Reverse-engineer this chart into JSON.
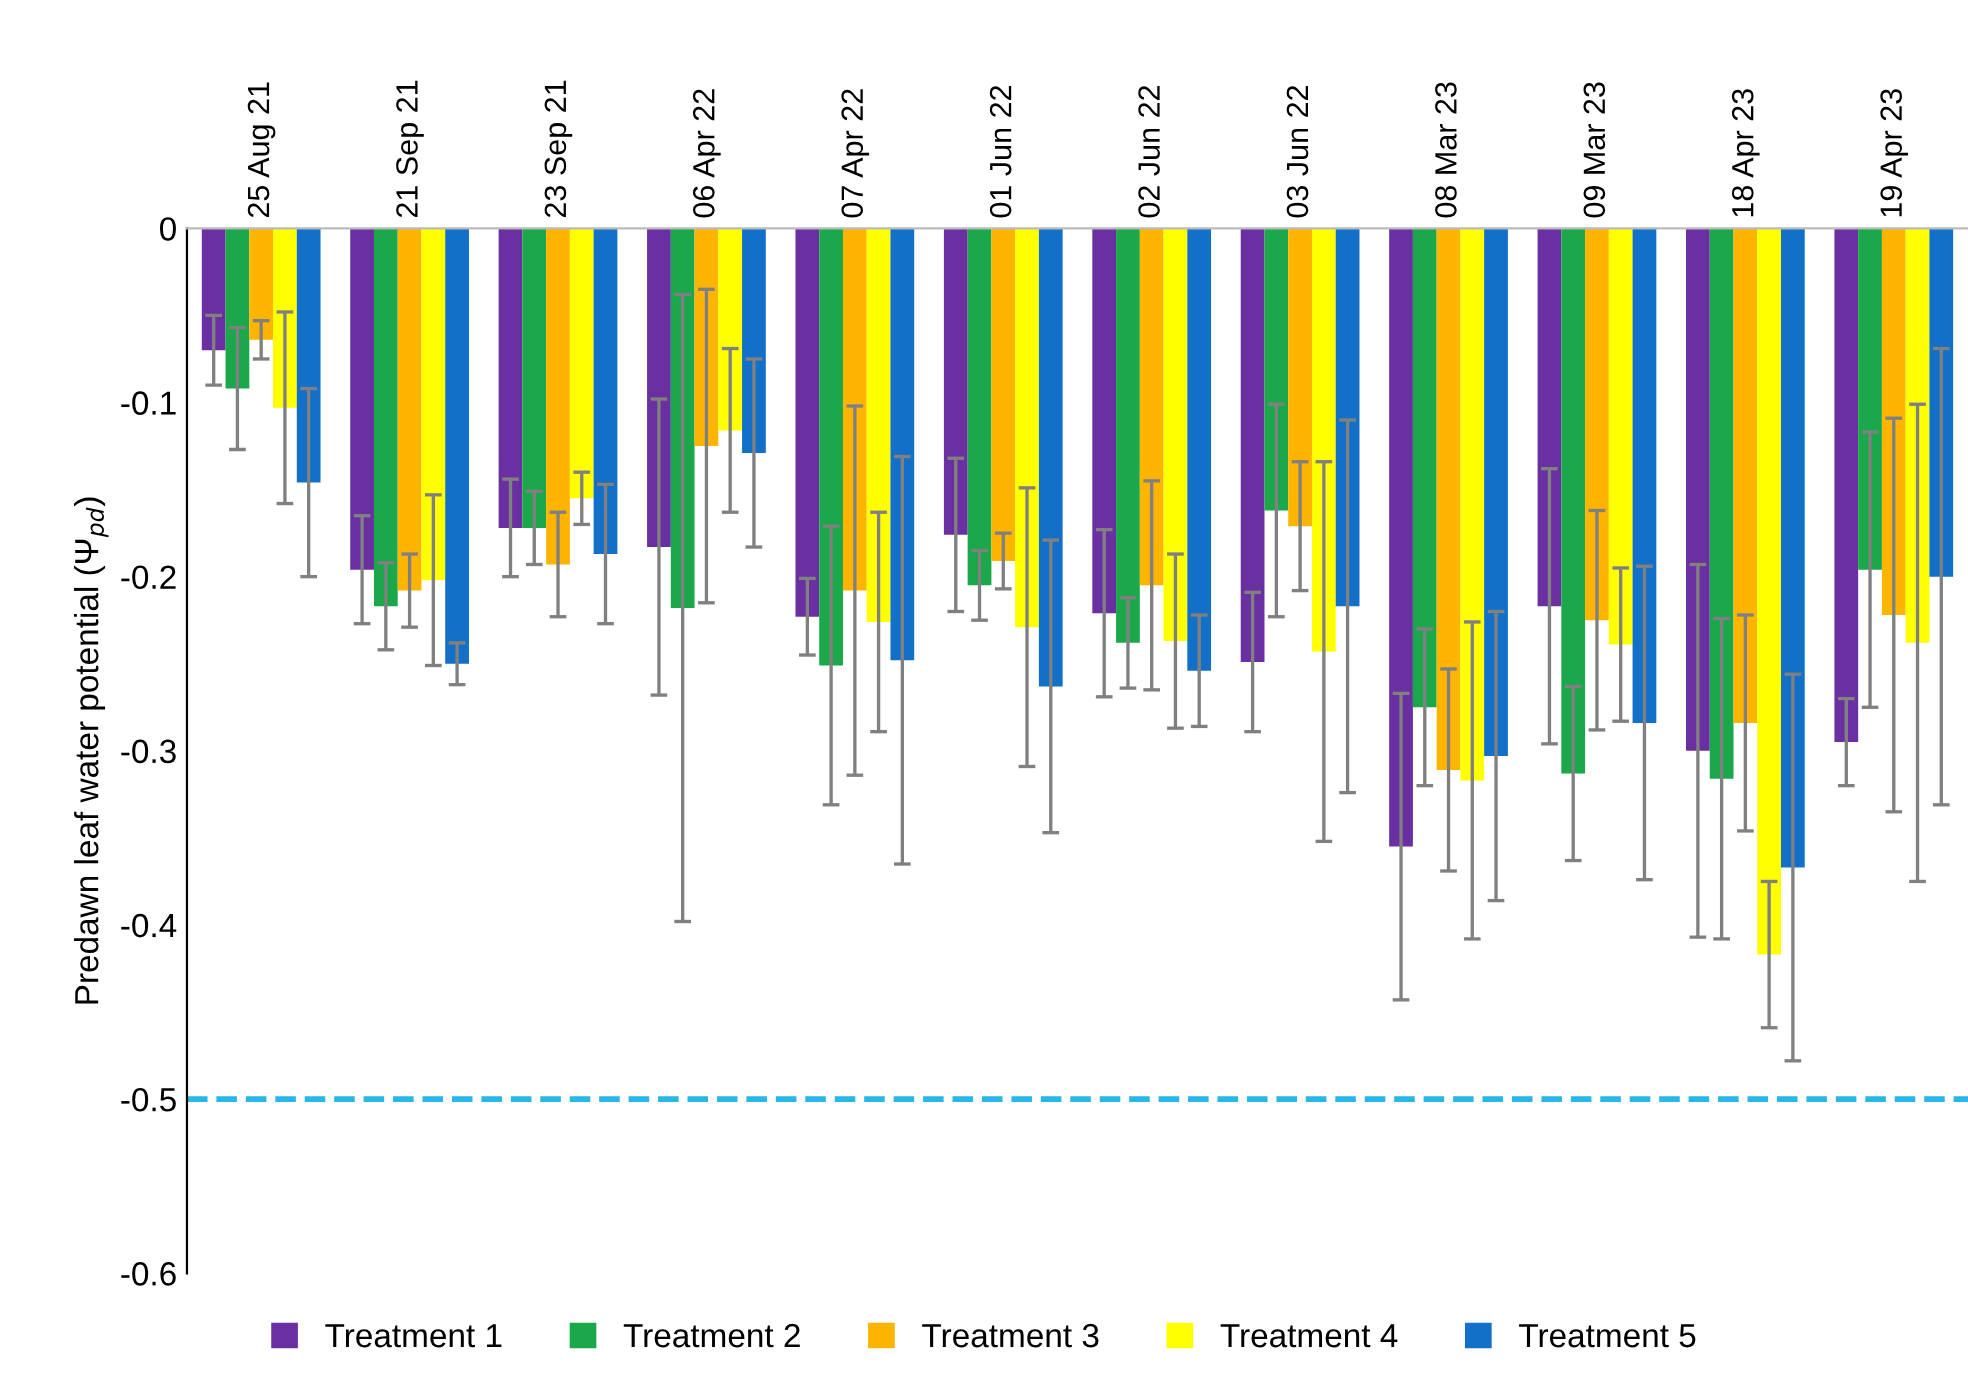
{
  "chart_data": {
    "type": "bar",
    "ylabel": "Predawn leaf water potential (Ψ$_{pd}$)",
    "categories": [
      "25 Aug 21",
      "21 Sep 21",
      "23 Sep 21",
      "06 Apr 22",
      "07 Apr 22",
      "01 Jun 22",
      "02 Jun 22",
      "03 Jun 22",
      "08 Mar 23",
      "09 Mar 23",
      "18 Apr 23",
      "19 Apr 23"
    ],
    "series": [
      {
        "name": "Treatment 1",
        "color": "#6a2fa0",
        "values": [
          -0.07,
          -0.196,
          -0.172,
          -0.183,
          -0.223,
          -0.176,
          -0.221,
          -0.249,
          -0.355,
          -0.217,
          -0.3,
          -0.295
        ],
        "errors": [
          0.02,
          0.031,
          0.028,
          0.085,
          0.022,
          0.044,
          0.048,
          0.04,
          0.088,
          0.079,
          0.107,
          0.025
        ]
      },
      {
        "name": "Treatment 2",
        "color": "#1aa84a",
        "values": [
          -0.092,
          -0.217,
          -0.172,
          -0.218,
          -0.251,
          -0.205,
          -0.238,
          -0.162,
          -0.275,
          -0.313,
          -0.316,
          -0.196
        ],
        "errors": [
          0.035,
          0.025,
          0.021,
          0.18,
          0.08,
          0.02,
          0.026,
          0.061,
          0.045,
          0.05,
          0.092,
          0.079
        ]
      },
      {
        "name": "Treatment 3",
        "color": "#ffb400",
        "values": [
          -0.064,
          -0.208,
          -0.193,
          -0.125,
          -0.208,
          -0.191,
          -0.205,
          -0.171,
          -0.311,
          -0.225,
          -0.284,
          -0.222
        ],
        "errors": [
          0.011,
          0.021,
          0.03,
          0.09,
          0.106,
          0.016,
          0.06,
          0.037,
          0.058,
          0.063,
          0.062,
          0.113
        ]
      },
      {
        "name": "Treatment 4",
        "color": "#ffff00",
        "values": [
          -0.103,
          -0.202,
          -0.155,
          -0.116,
          -0.226,
          -0.229,
          -0.237,
          -0.243,
          -0.317,
          -0.239,
          -0.417,
          -0.238
        ],
        "errors": [
          0.055,
          0.049,
          0.015,
          0.047,
          0.063,
          0.08,
          0.05,
          0.109,
          0.091,
          0.044,
          0.042,
          0.137
        ]
      },
      {
        "name": "Treatment 5",
        "color": "#1270c8",
        "values": [
          -0.146,
          -0.25,
          -0.187,
          -0.129,
          -0.248,
          -0.263,
          -0.254,
          -0.217,
          -0.303,
          -0.284,
          -0.367,
          -0.2
        ],
        "errors": [
          0.054,
          0.012,
          0.04,
          0.054,
          0.117,
          0.084,
          0.032,
          0.107,
          0.083,
          0.09,
          0.111,
          0.131
        ]
      }
    ],
    "ylim": [
      -0.6,
      0
    ],
    "yticks": [
      0,
      -0.1,
      -0.2,
      -0.3,
      -0.4,
      -0.5,
      -0.6
    ],
    "ref_lines": [
      {
        "axis": "y",
        "value": -0.5,
        "color": "#29b6e8",
        "line_style": "dashed"
      }
    ],
    "grid": false,
    "legend": "bottom"
  }
}
